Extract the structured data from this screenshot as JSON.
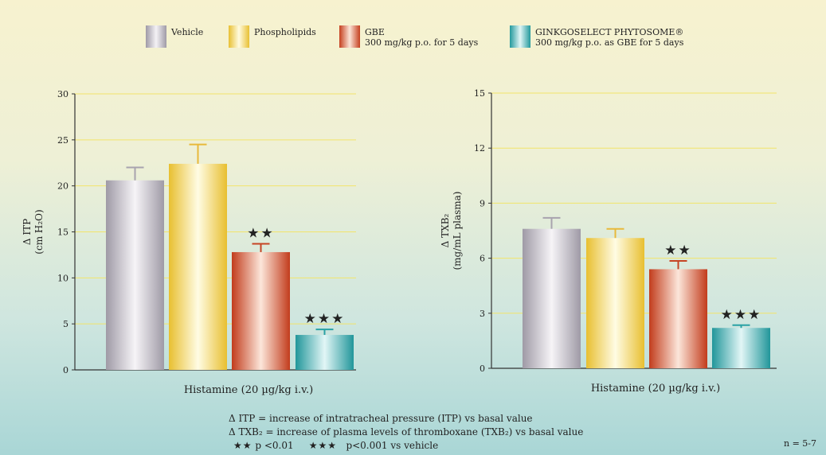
{
  "chart_data": [
    {
      "type": "bar",
      "categories": [
        "Vehicle",
        "Phospholipids",
        "GBE",
        "GINKGOSELECT PHYTOSOME®"
      ],
      "values": [
        20.6,
        22.4,
        12.8,
        3.8
      ],
      "errors": [
        1.4,
        2.1,
        0.9,
        0.6
      ],
      "significance": [
        "",
        "",
        "★★",
        "★★★"
      ],
      "ylabel": "Δ ITP",
      "ylabel_unit": "(cm H₂O)",
      "xlabel": "Histamine (20 µg/kg i.v.)",
      "ylim": [
        0,
        30
      ],
      "yticks": [
        0,
        5,
        10,
        15,
        20,
        25,
        30
      ],
      "grid": true
    },
    {
      "type": "bar",
      "categories": [
        "Vehicle",
        "Phospholipids",
        "GBE",
        "GINKGOSELECT PHYTOSOME®"
      ],
      "values": [
        7.6,
        7.1,
        5.4,
        2.2
      ],
      "errors": [
        0.6,
        0.5,
        0.45,
        0.15
      ],
      "significance": [
        "",
        "",
        "★★",
        "★★★"
      ],
      "ylabel": "Δ TXB₂",
      "ylabel_unit": "(mg/mL plasma)",
      "xlabel": "Histamine (20 µg/kg i.v.)",
      "ylim": [
        0,
        15
      ],
      "yticks": [
        0,
        3,
        6,
        9,
        12,
        15
      ],
      "grid": true
    }
  ],
  "legend": {
    "items": [
      {
        "name": "Vehicle",
        "line2": "",
        "color": "#c7c2cc"
      },
      {
        "name": "Phospholipids",
        "line2": "",
        "color": "#fbe27a"
      },
      {
        "name": "GBE",
        "line2": "300 mg/kg p.o. for 5 days",
        "color": "#e2663f"
      },
      {
        "name": "GINKGOSELECT PHYTOSOME®",
        "line2": "300 mg/kg p.o. as GBE for 5 days",
        "color": "#44b7ba"
      }
    ]
  },
  "footnotes": {
    "itp": "Δ ITP = increase of intratracheal pressure (ITP) vs basal value",
    "txb": "Δ TXB₂ = increase of plasma levels of thromboxane (TXB₂) vs basal value",
    "sig2_stars": "★★",
    "sig2_text": "p <0.01",
    "sig3_stars": "★★★",
    "sig3_text": "p<0.001 vs vehicle",
    "n": "n = 5-7"
  },
  "colors": {
    "grid": "#f2e46a",
    "vehicle": "#c7c2cc",
    "phospholipids": "#fbe27a",
    "gbe": "#e2663f",
    "phytosome": "#44b7ba"
  }
}
